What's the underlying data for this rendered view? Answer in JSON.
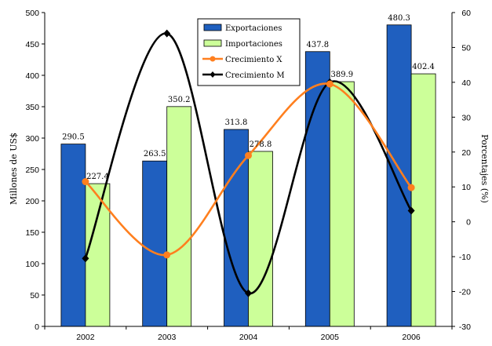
{
  "chart_data": {
    "type": "bar",
    "categories": [
      "2002",
      "2003",
      "2004",
      "2005",
      "2006"
    ],
    "series": [
      {
        "name": "Exportaciones",
        "kind": "bar",
        "axis": "left",
        "values": [
          290.5,
          263.5,
          313.8,
          437.8,
          480.3
        ],
        "labels": [
          "290.5",
          "263.5",
          "313.8",
          "437.8",
          "480.3"
        ],
        "color": "#1f5fbf"
      },
      {
        "name": "Importaciones",
        "kind": "bar",
        "axis": "left",
        "values": [
          227.4,
          350.2,
          278.8,
          389.9,
          402.4
        ],
        "labels": [
          "227.4",
          "350.2",
          "278.8",
          "389.9",
          "402.4"
        ],
        "color": "#ccff99"
      },
      {
        "name": "Crecimiento X",
        "kind": "line",
        "axis": "right",
        "values": [
          11.5,
          -9.5,
          19.0,
          39.5,
          9.8
        ],
        "color": "#ff7f1e",
        "marker": "circle"
      },
      {
        "name": "Crecimiento M",
        "kind": "line",
        "axis": "right",
        "values": [
          -10.5,
          54.0,
          -20.5,
          40.0,
          3.2
        ],
        "color": "#000000",
        "marker": "diamond"
      }
    ],
    "ylabel": "Millones de US$",
    "y2label": "Porcentajes (%)",
    "ylim": [
      0,
      500
    ],
    "y2lim": [
      -30,
      60
    ],
    "yticks": [
      "0",
      "50",
      "100",
      "150",
      "200",
      "250",
      "300",
      "350",
      "400",
      "450",
      "500"
    ],
    "y2ticks": [
      "-30",
      "-20",
      "-10",
      "0",
      "10",
      "20",
      "30",
      "40",
      "50",
      "60"
    ],
    "grid": false,
    "legend_position": "top-right"
  }
}
